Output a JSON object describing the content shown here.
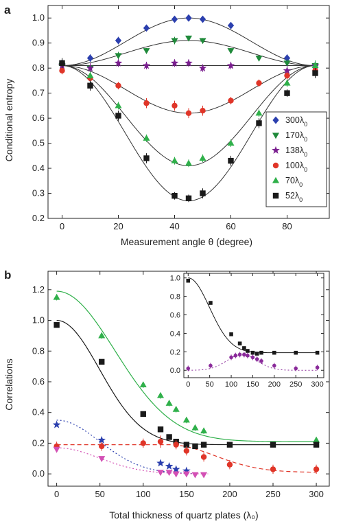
{
  "chart_data": [
    {
      "panel": "a",
      "type": "scatter",
      "xlabel": "Measurement angle θ (degree)",
      "ylabel": "Conditional entropy",
      "xlim": [
        -5,
        95
      ],
      "ylim": [
        0.2,
        1.05
      ],
      "xticks": [
        0,
        20,
        40,
        60,
        80
      ],
      "yticks": [
        0.2,
        0.3,
        0.4,
        0.5,
        0.6,
        0.7,
        0.8,
        0.9,
        1.0
      ],
      "legend_position": "right",
      "series": [
        {
          "name": "300λ",
          "name_sub": "0",
          "marker": "diamond",
          "color": "#2b3fae",
          "x": [
            0,
            10,
            20,
            30,
            40,
            45,
            50,
            60,
            80,
            90
          ],
          "y": [
            0.82,
            0.84,
            0.91,
            0.96,
            0.995,
            1.0,
            0.995,
            0.97,
            0.84,
            0.81
          ],
          "err": [
            0.02,
            0.015,
            0.015,
            0.01,
            0.01,
            0.01,
            0.01,
            0.01,
            0.015,
            0.02
          ],
          "curve": {
            "base": 0.81,
            "amp": 0.19
          }
        },
        {
          "name": "170λ",
          "name_sub": "0",
          "marker": "triangle-down",
          "color": "#1f8a3a",
          "x": [
            0,
            10,
            20,
            30,
            40,
            45,
            50,
            60,
            70,
            80,
            90
          ],
          "y": [
            0.81,
            0.8,
            0.85,
            0.87,
            0.91,
            0.92,
            0.91,
            0.87,
            0.84,
            0.82,
            0.81
          ],
          "err": [
            0.02,
            0.015,
            0.015,
            0.01,
            0.015,
            0.01,
            0.01,
            0.01,
            0.01,
            0.015,
            0.02
          ],
          "curve": {
            "base": 0.81,
            "amp": 0.1
          }
        },
        {
          "name": "138λ",
          "name_sub": "0",
          "marker": "star",
          "color": "#7a1f8f",
          "x": [
            0,
            10,
            20,
            30,
            40,
            45,
            50,
            60,
            80,
            90
          ],
          "y": [
            0.81,
            0.8,
            0.82,
            0.81,
            0.82,
            0.82,
            0.8,
            0.81,
            0.79,
            0.81
          ],
          "err": [
            0.02,
            0.02,
            0.015,
            0.015,
            0.015,
            0.015,
            0.015,
            0.015,
            0.02,
            0.02
          ],
          "curve": {
            "base": 0.81,
            "amp": 0.0
          }
        },
        {
          "name": "100λ",
          "name_sub": "0",
          "marker": "circle",
          "color": "#e03528",
          "x": [
            0,
            10,
            20,
            30,
            40,
            45,
            50,
            60,
            70,
            80,
            90
          ],
          "y": [
            0.79,
            0.76,
            0.73,
            0.66,
            0.65,
            0.62,
            0.63,
            0.67,
            0.74,
            0.77,
            0.79
          ],
          "err": [
            0.015,
            0.015,
            0.015,
            0.02,
            0.02,
            0.02,
            0.02,
            0.015,
            0.015,
            0.015,
            0.015
          ],
          "curve": {
            "base": 0.81,
            "amp": -0.19
          }
        },
        {
          "name": "70λ",
          "name_sub": "0",
          "marker": "triangle-up",
          "color": "#2fb04a",
          "x": [
            0,
            10,
            20,
            30,
            40,
            45,
            50,
            60,
            70,
            80,
            90
          ],
          "y": [
            0.82,
            0.77,
            0.65,
            0.52,
            0.43,
            0.42,
            0.44,
            0.5,
            0.62,
            0.74,
            0.81
          ],
          "err": [
            0.02,
            0.015,
            0.015,
            0.015,
            0.015,
            0.015,
            0.015,
            0.015,
            0.015,
            0.015,
            0.02
          ],
          "curve": {
            "base": 0.81,
            "amp": -0.4
          }
        },
        {
          "name": "52λ",
          "name_sub": "0",
          "marker": "square",
          "color": "#1a1a1a",
          "x": [
            0,
            10,
            20,
            30,
            40,
            45,
            50,
            60,
            70,
            80,
            90
          ],
          "y": [
            0.82,
            0.73,
            0.61,
            0.44,
            0.29,
            0.28,
            0.3,
            0.43,
            0.58,
            0.7,
            0.78
          ],
          "err": [
            0.02,
            0.02,
            0.02,
            0.02,
            0.015,
            0.015,
            0.02,
            0.02,
            0.02,
            0.015,
            0.02
          ],
          "curve": {
            "base": 0.81,
            "amp": -0.54
          }
        }
      ]
    },
    {
      "panel": "b",
      "type": "scatter",
      "xlabel": "Total thickness of quartz plates (λ₀)",
      "ylabel": "Correlations",
      "xlim": [
        -10,
        315
      ],
      "ylim": [
        -0.08,
        1.32
      ],
      "xticks": [
        0,
        50,
        100,
        150,
        200,
        250,
        300
      ],
      "yticks": [
        0.0,
        0.2,
        0.4,
        0.6,
        0.8,
        1.0,
        1.2
      ],
      "series": [
        {
          "marker": "triangle-up",
          "color": "#2fb04a",
          "line_color": "#2fb04a",
          "line_style": "solid",
          "x": [
            0,
            52,
            100,
            120,
            130,
            138,
            150,
            160,
            170,
            300
          ],
          "y": [
            1.15,
            0.9,
            0.58,
            0.51,
            0.46,
            0.42,
            0.35,
            0.3,
            0.28,
            0.22
          ],
          "err": [
            0.02,
            0.02,
            0.02,
            0.02,
            0.02,
            0.02,
            0.02,
            0.02,
            0.02,
            0.02
          ],
          "curve": {
            "top": 1.19,
            "floor": 0.21,
            "width": 95
          }
        },
        {
          "marker": "square",
          "color": "#1a1a1a",
          "line_color": "#1a1a1a",
          "line_style": "solid",
          "x": [
            0,
            52,
            100,
            120,
            130,
            138,
            150,
            160,
            170,
            200,
            250,
            300
          ],
          "y": [
            0.97,
            0.73,
            0.39,
            0.29,
            0.24,
            0.21,
            0.19,
            0.18,
            0.19,
            0.19,
            0.19,
            0.19
          ],
          "err": [
            0.015,
            0.015,
            0.015,
            0.015,
            0.015,
            0.015,
            0.015,
            0.015,
            0.015,
            0.015,
            0.015,
            0.015
          ],
          "curve": {
            "top": 1.0,
            "floor": 0.19,
            "width": 70
          }
        },
        {
          "marker": "circle",
          "color": "#e03528",
          "line_color": "#e03528",
          "line_style": "dashed",
          "x": [
            0,
            52,
            100,
            120,
            138,
            150,
            170,
            200,
            250,
            300
          ],
          "y": [
            0.18,
            0.18,
            0.2,
            0.21,
            0.19,
            0.15,
            0.11,
            0.06,
            0.03,
            0.03
          ],
          "err": [
            0.03,
            0.03,
            0.03,
            0.04,
            0.03,
            0.03,
            0.03,
            0.03,
            0.03,
            0.03
          ],
          "curve": {
            "top": 0.19,
            "floor": 0.01,
            "width": 110,
            "flat_until": 130
          }
        },
        {
          "marker": "star",
          "color": "#2b3fae",
          "line_color": "#2b3fae",
          "line_style": "dotted",
          "x": [
            0,
            52,
            120,
            130,
            138,
            150
          ],
          "y": [
            0.32,
            0.22,
            0.07,
            0.05,
            0.03,
            0.02
          ],
          "err": [
            0.01,
            0.01,
            0.01,
            0.01,
            0.01,
            0.01
          ],
          "curve": {
            "top": 0.35,
            "floor": 0.0,
            "width": 70
          }
        },
        {
          "marker": "triangle-down",
          "color": "#d34fb4",
          "line_color": "#d34fb4",
          "line_style": "dotted",
          "x": [
            0,
            52,
            120,
            130,
            138,
            150,
            160,
            170
          ],
          "y": [
            0.16,
            0.1,
            0.01,
            0.01,
            0.0,
            0.0,
            -0.005,
            -0.005
          ],
          "err": [
            0.01,
            0.01,
            0.01,
            0.01,
            0.01,
            0.01,
            0.01,
            0.01
          ],
          "curve": {
            "top": 0.17,
            "floor": 0.0,
            "width": 70
          }
        }
      ]
    },
    {
      "panel": "b-inset",
      "type": "scatter",
      "xlim": [
        -10,
        315
      ],
      "ylim": [
        -0.08,
        1.05
      ],
      "xticks": [
        0,
        50,
        100,
        150,
        200,
        250,
        300
      ],
      "yticks": [
        0.0,
        0.2,
        0.4,
        0.6,
        0.8,
        1.0
      ],
      "series": [
        {
          "marker": "square",
          "color": "#1a1a1a",
          "line_color": "#1a1a1a",
          "line_style": "solid",
          "x": [
            0,
            52,
            100,
            120,
            130,
            138,
            150,
            160,
            170,
            200,
            250,
            300
          ],
          "y": [
            0.97,
            0.73,
            0.39,
            0.29,
            0.24,
            0.21,
            0.19,
            0.18,
            0.19,
            0.19,
            0.19,
            0.19
          ],
          "err": [
            0.01,
            0.01,
            0.01,
            0.01,
            0.01,
            0.01,
            0.01,
            0.01,
            0.01,
            0.01,
            0.01,
            0.01
          ],
          "curve": {
            "top": 1.0,
            "floor": 0.19,
            "width": 70
          }
        },
        {
          "marker": "circle",
          "color": "#8a2a9a",
          "line_color": "#8a2a9a",
          "line_style": "dotted",
          "x": [
            0,
            52,
            100,
            110,
            120,
            130,
            138,
            150,
            160,
            170,
            200,
            250,
            300
          ],
          "y": [
            0.02,
            0.05,
            0.14,
            0.16,
            0.17,
            0.17,
            0.16,
            0.14,
            0.12,
            0.1,
            0.05,
            0.02,
            0.03
          ],
          "err": [
            0.03,
            0.03,
            0.03,
            0.03,
            0.03,
            0.03,
            0.03,
            0.03,
            0.03,
            0.03,
            0.03,
            0.03,
            0.03
          ],
          "curve": {
            "peak": 0.17,
            "center": 125,
            "sigma": 50
          }
        }
      ]
    }
  ]
}
